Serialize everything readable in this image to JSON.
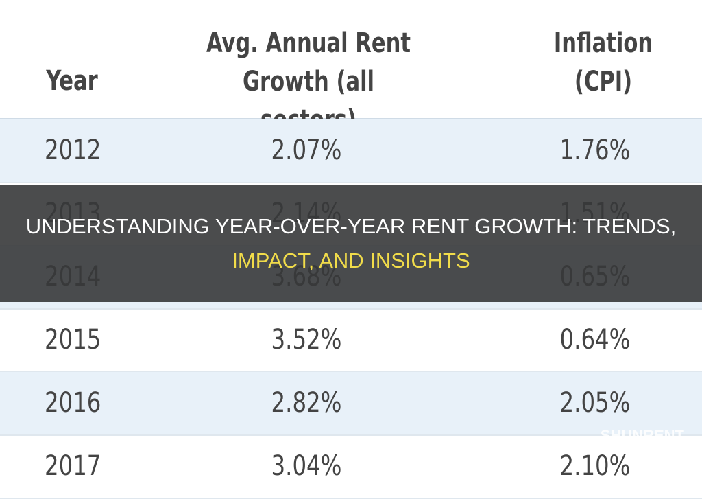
{
  "table": {
    "header": [
      "Year",
      "Avg. Annual Rent Growth (all sectors)",
      "Inflation (CPI)"
    ],
    "rows": [
      [
        "2012",
        "2.07%",
        "1.76%"
      ],
      [
        "2013",
        "2.14%",
        "1.51%"
      ],
      [
        "2014",
        "3.68%",
        "0.65%"
      ],
      [
        "2015",
        "3.52%",
        "0.64%"
      ],
      [
        "2016",
        "2.82%",
        "2.05%"
      ],
      [
        "2017",
        "3.04%",
        "2.10%"
      ]
    ]
  },
  "overlay": {
    "title_lines": [
      "UNDERSTANDING YEAR-OVER-YEAR RENT GROWTH: TRENDS,",
      "IMPACT, AND INSIGHTS"
    ]
  },
  "watermark": "SHUNRENT"
}
